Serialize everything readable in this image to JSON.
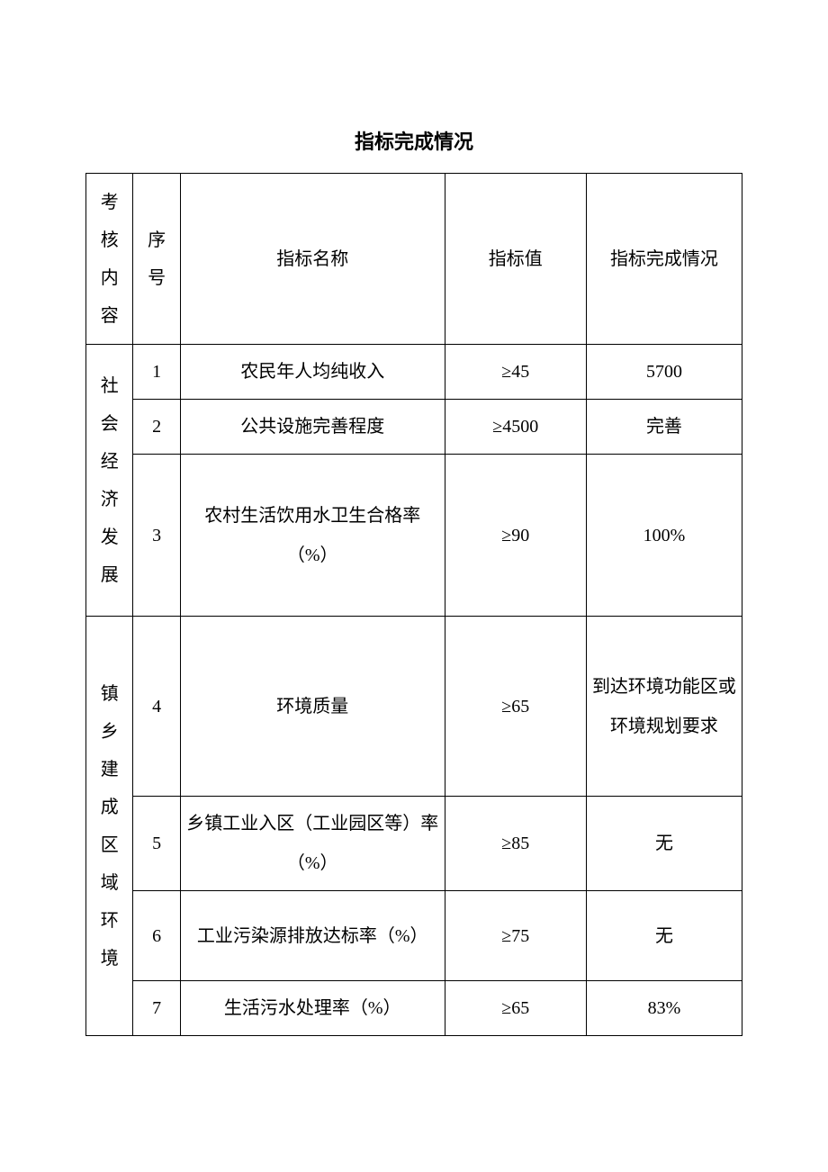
{
  "title": "指标完成情况",
  "columns": {
    "category": "考核内容",
    "seq": "序号",
    "name": "指标名称",
    "value": "指标值",
    "status": "指标完成情况"
  },
  "categories": {
    "cat1": "社会经济发展",
    "cat2": "镇乡建成区域环境"
  },
  "rows": [
    {
      "seq": "1",
      "name": "农民年人均纯收入",
      "value": "≥45",
      "status": "5700"
    },
    {
      "seq": "2",
      "name": "公共设施完善程度",
      "value": "≥4500",
      "status": "完善"
    },
    {
      "seq": "3",
      "name": "农村生活饮用水卫生合格率（%）",
      "value": "≥90",
      "status": "100%"
    },
    {
      "seq": "4",
      "name": "环境质量",
      "value": "≥65",
      "status": "到达环境功能区或环境规划要求"
    },
    {
      "seq": "5",
      "name": "乡镇工业入区（工业园区等）率（%）",
      "value": "≥85",
      "status": "无"
    },
    {
      "seq": "6",
      "name": "工业污染源排放达标率（%）",
      "value": "≥75",
      "status": "无"
    },
    {
      "seq": "7",
      "name": "生活污水处理率（%）",
      "value": "≥65",
      "status": "83%"
    }
  ],
  "styling": {
    "background_color": "#ffffff",
    "text_color": "#000000",
    "border_color": "#000000",
    "title_fontsize": 22,
    "cell_fontsize": 20,
    "col_widths": {
      "category": 50,
      "seq": 50,
      "name": 280,
      "value": 150,
      "status": 165
    }
  }
}
